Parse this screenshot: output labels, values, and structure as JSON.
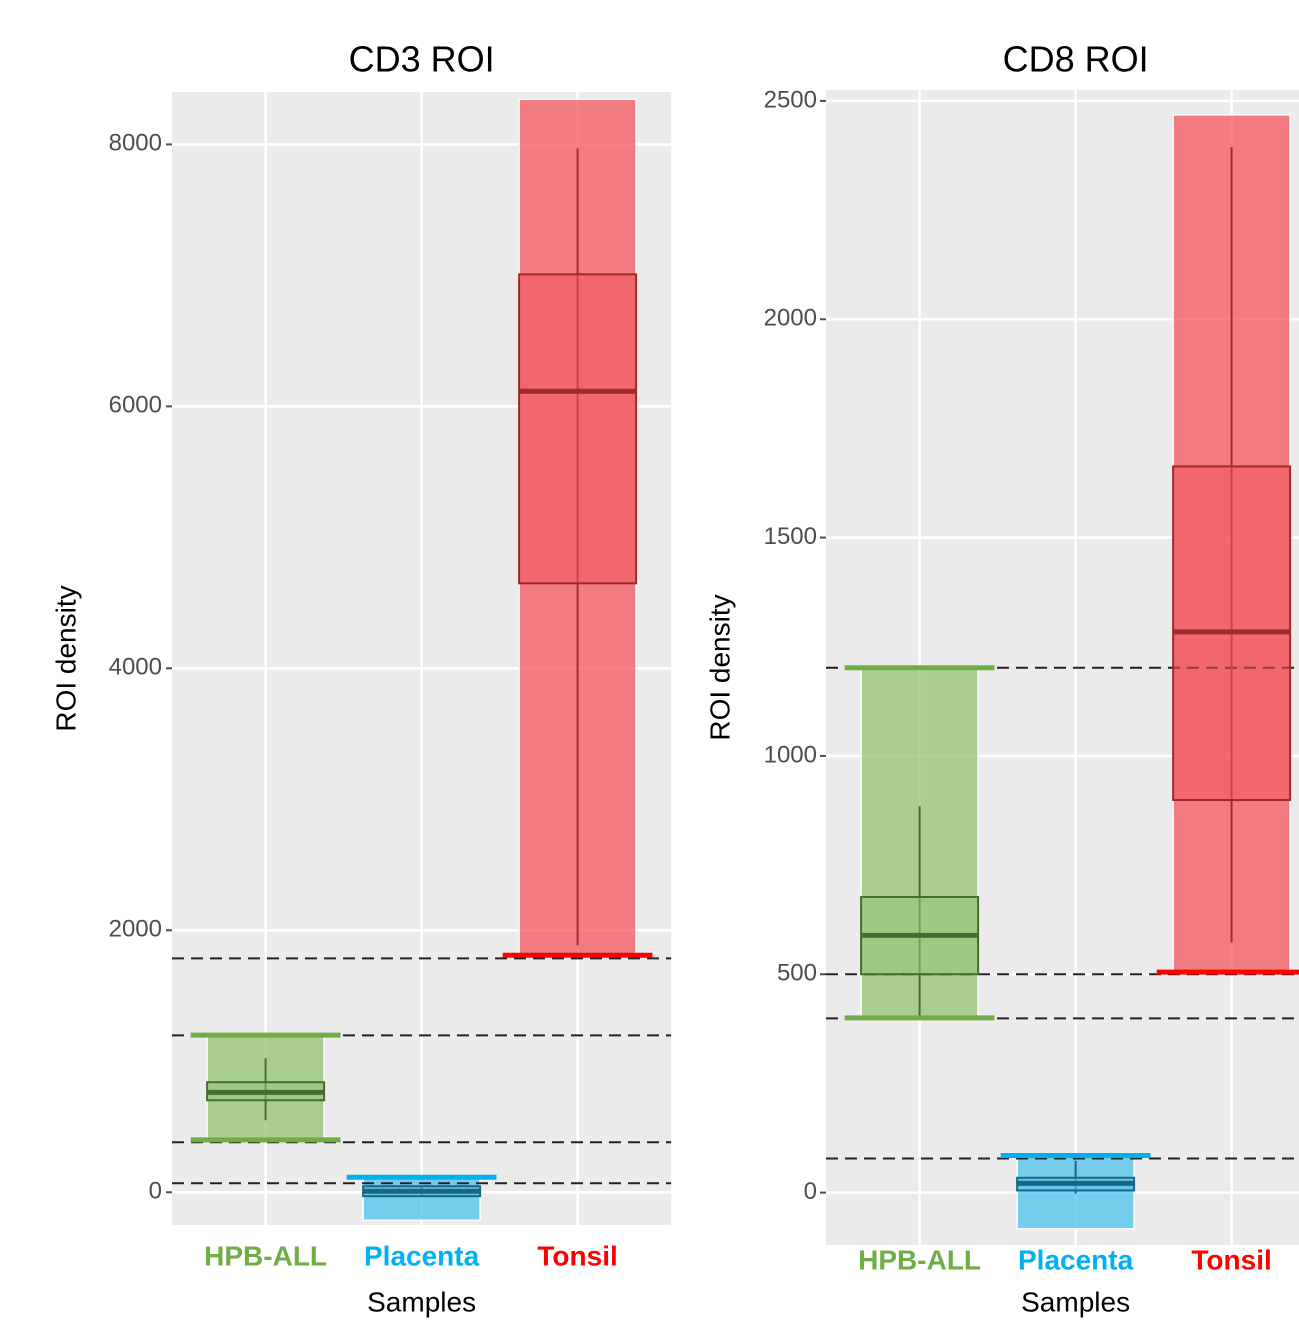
{
  "chart_data": [
    {
      "type": "box",
      "title": "CD3 ROI",
      "xlabel": "Samples",
      "ylabel": "ROI density",
      "categories": [
        "HPB-ALL",
        "Placenta",
        "Tonsil"
      ],
      "category_colors": [
        "#70ad47",
        "#00b0f0",
        "#ff0000"
      ],
      "fill_colors": [
        "#94c474",
        "#4cc3ee",
        "#f3555d"
      ],
      "line_colors": [
        "#466b33",
        "#1d6585",
        "#9e2a2e"
      ],
      "whisker_low": [
        550,
        -30,
        1885
      ],
      "q1": [
        702,
        -30,
        4649
      ],
      "median": [
        763,
        8,
        6115
      ],
      "q3": [
        840,
        46,
        7008
      ],
      "whisker_high": [
        1023,
        46,
        7970
      ],
      "band_low": [
        412,
        -214,
        1809
      ],
      "band_high": [
        1206,
        115,
        8344
      ],
      "thresholds": [
        [
          400,
          1200
        ],
        [
          115
        ],
        [
          1809
        ]
      ],
      "reference_lines": [
        1786,
        1198,
        382,
        69
      ],
      "ylim": [
        -250,
        8400
      ],
      "yticks": [
        0,
        2000,
        4000,
        6000,
        8000
      ],
      "grid": true
    },
    {
      "type": "box",
      "title": "CD8 ROI",
      "xlabel": "Samples",
      "ylabel": "ROI density",
      "categories": [
        "HPB-ALL",
        "Placenta",
        "Tonsil"
      ],
      "category_colors": [
        "#70ad47",
        "#00b0f0",
        "#ff0000"
      ],
      "fill_colors": [
        "#94c474",
        "#4cc3ee",
        "#f3555d"
      ],
      "line_colors": [
        "#466b33",
        "#1d6585",
        "#9e2a2e"
      ],
      "whisker_low": [
        399,
        -2,
        573
      ],
      "q1": [
        500,
        5,
        899
      ],
      "median": [
        589,
        21,
        1284
      ],
      "q3": [
        677,
        34,
        1663
      ],
      "whisker_high": [
        885,
        73,
        2394
      ],
      "band_low": [
        399,
        -83,
        505
      ],
      "band_high": [
        1202,
        85,
        2468
      ],
      "thresholds": [
        [
          400,
          1202
        ],
        [
          85
        ],
        [
          505
        ]
      ],
      "reference_lines": [
        1202,
        500,
        399,
        78
      ],
      "ylim": [
        -120,
        2525
      ],
      "yticks": [
        0,
        500,
        1000,
        1500,
        2000,
        2500
      ],
      "grid": true
    }
  ]
}
